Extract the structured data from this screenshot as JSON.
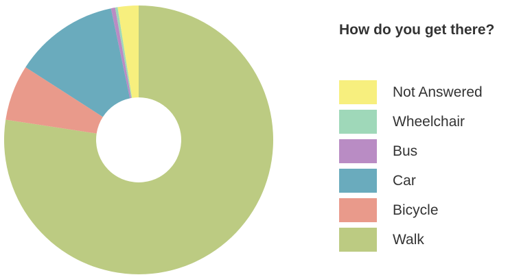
{
  "chart_data": {
    "type": "pie",
    "title": "How do you get there?",
    "legend_placement": "right",
    "series": [
      {
        "name": "Not Answered",
        "value": 2.5,
        "color": "#f7ef7e"
      },
      {
        "name": "Wheelchair",
        "value": 0.3,
        "color": "#9fd8b9"
      },
      {
        "name": "Bus",
        "value": 0.5,
        "color": "#b98cc4"
      },
      {
        "name": "Car",
        "value": 12.6,
        "color": "#6aabbd"
      },
      {
        "name": "Bicycle",
        "value": 6.7,
        "color": "#e99a8b"
      },
      {
        "name": "Walk",
        "value": 77.4,
        "color": "#bccb82"
      }
    ]
  }
}
